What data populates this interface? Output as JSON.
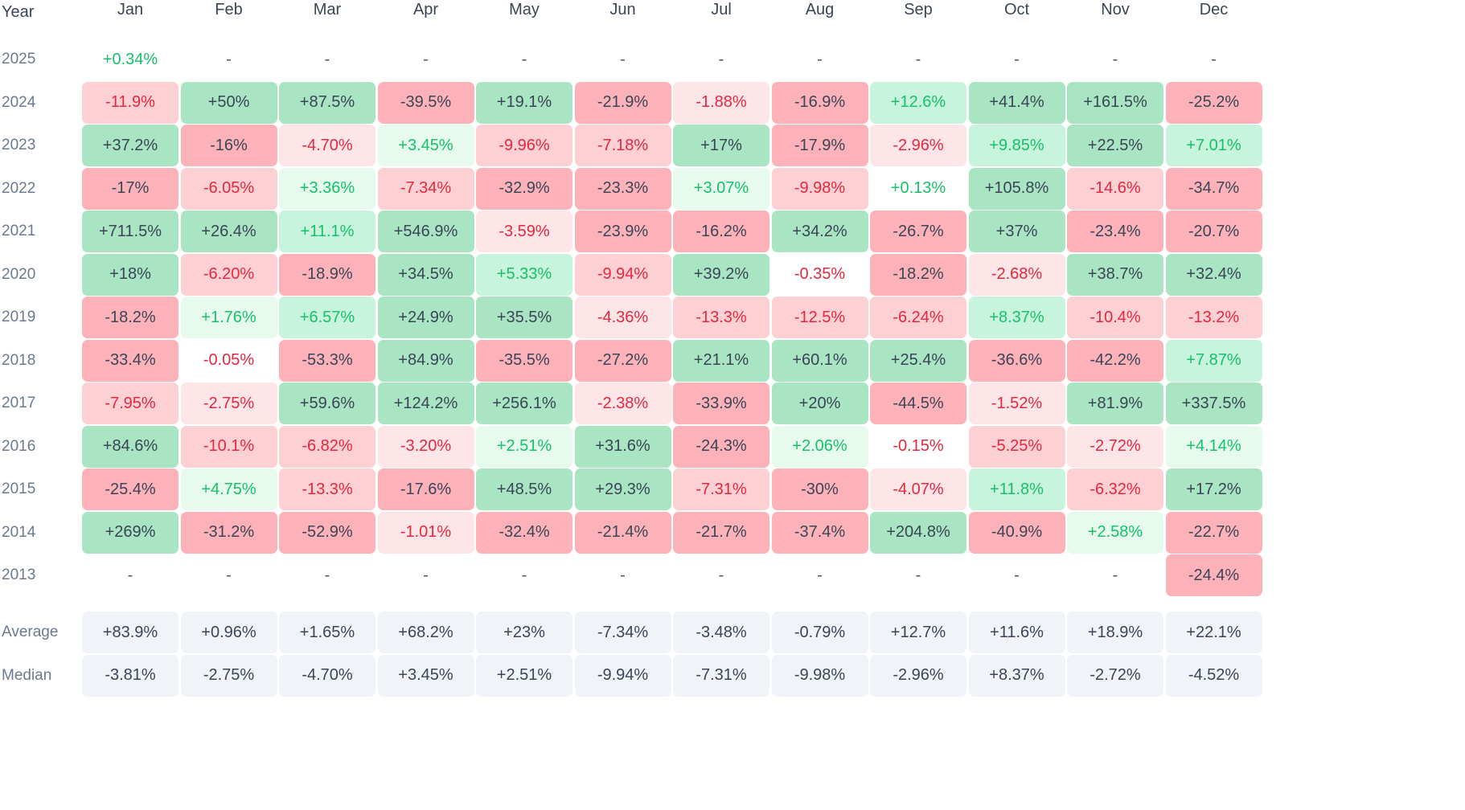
{
  "chart_data": {
    "type": "heatmap",
    "title": "",
    "corner_label": "Year",
    "months": [
      "Jan",
      "Feb",
      "Mar",
      "Apr",
      "May",
      "Jun",
      "Jul",
      "Aug",
      "Sep",
      "Oct",
      "Nov",
      "Dec"
    ],
    "rows": [
      {
        "year": "2025",
        "values": [
          "+0.34%",
          "-",
          "-",
          "-",
          "-",
          "-",
          "-",
          "-",
          "-",
          "-",
          "-",
          "-"
        ]
      },
      {
        "year": "2024",
        "values": [
          "-11.9%",
          "+50%",
          "+87.5%",
          "-39.5%",
          "+19.1%",
          "-21.9%",
          "-1.88%",
          "-16.9%",
          "+12.6%",
          "+41.4%",
          "+161.5%",
          "-25.2%"
        ]
      },
      {
        "year": "2023",
        "values": [
          "+37.2%",
          "-16%",
          "-4.70%",
          "+3.45%",
          "-9.96%",
          "-7.18%",
          "+17%",
          "-17.9%",
          "-2.96%",
          "+9.85%",
          "+22.5%",
          "+7.01%"
        ]
      },
      {
        "year": "2022",
        "values": [
          "-17%",
          "-6.05%",
          "+3.36%",
          "-7.34%",
          "-32.9%",
          "-23.3%",
          "+3.07%",
          "-9.98%",
          "+0.13%",
          "+105.8%",
          "-14.6%",
          "-34.7%"
        ]
      },
      {
        "year": "2021",
        "values": [
          "+711.5%",
          "+26.4%",
          "+11.1%",
          "+546.9%",
          "-3.59%",
          "-23.9%",
          "-16.2%",
          "+34.2%",
          "-26.7%",
          "+37%",
          "-23.4%",
          "-20.7%"
        ]
      },
      {
        "year": "2020",
        "values": [
          "+18%",
          "-6.20%",
          "-18.9%",
          "+34.5%",
          "+5.33%",
          "-9.94%",
          "+39.2%",
          "-0.35%",
          "-18.2%",
          "-2.68%",
          "+38.7%",
          "+32.4%"
        ]
      },
      {
        "year": "2019",
        "values": [
          "-18.2%",
          "+1.76%",
          "+6.57%",
          "+24.9%",
          "+35.5%",
          "-4.36%",
          "-13.3%",
          "-12.5%",
          "-6.24%",
          "+8.37%",
          "-10.4%",
          "-13.2%"
        ]
      },
      {
        "year": "2018",
        "values": [
          "-33.4%",
          "-0.05%",
          "-53.3%",
          "+84.9%",
          "-35.5%",
          "-27.2%",
          "+21.1%",
          "+60.1%",
          "+25.4%",
          "-36.6%",
          "-42.2%",
          "+7.87%"
        ]
      },
      {
        "year": "2017",
        "values": [
          "-7.95%",
          "-2.75%",
          "+59.6%",
          "+124.2%",
          "+256.1%",
          "-2.38%",
          "-33.9%",
          "+20%",
          "-44.5%",
          "-1.52%",
          "+81.9%",
          "+337.5%"
        ]
      },
      {
        "year": "2016",
        "values": [
          "+84.6%",
          "-10.1%",
          "-6.82%",
          "-3.20%",
          "+2.51%",
          "+31.6%",
          "-24.3%",
          "+2.06%",
          "-0.15%",
          "-5.25%",
          "-2.72%",
          "+4.14%"
        ]
      },
      {
        "year": "2015",
        "values": [
          "-25.4%",
          "+4.75%",
          "-13.3%",
          "-17.6%",
          "+48.5%",
          "+29.3%",
          "-7.31%",
          "-30%",
          "-4.07%",
          "+11.8%",
          "-6.32%",
          "+17.2%"
        ]
      },
      {
        "year": "2014",
        "values": [
          "+269%",
          "-31.2%",
          "-52.9%",
          "-1.01%",
          "-32.4%",
          "-21.4%",
          "-21.7%",
          "-37.4%",
          "+204.8%",
          "-40.9%",
          "+2.58%",
          "-22.7%"
        ]
      },
      {
        "year": "2013",
        "values": [
          "-",
          "-",
          "-",
          "-",
          "-",
          "-",
          "-",
          "-",
          "-",
          "-",
          "-",
          "-24.4%"
        ]
      }
    ],
    "summary_rows": [
      {
        "label": "Average",
        "values": [
          "+83.9%",
          "+0.96%",
          "+1.65%",
          "+68.2%",
          "+23%",
          "-7.34%",
          "-3.48%",
          "-0.79%",
          "+12.7%",
          "+11.6%",
          "+18.9%",
          "+22.1%"
        ]
      },
      {
        "label": "Median",
        "values": [
          "-3.81%",
          "-2.75%",
          "-4.70%",
          "+3.45%",
          "+2.51%",
          "-9.94%",
          "-7.31%",
          "-9.98%",
          "-2.96%",
          "+8.37%",
          "-2.72%",
          "-4.52%"
        ]
      }
    ],
    "colors": {
      "pos_strong_bg": "#a9e4c3",
      "pos_mid_bg": "#c8f3dc",
      "pos_light_bg": "#e6fbee",
      "neg_strong_bg": "#fdb2b9",
      "neg_mid_bg": "#fdd0d4",
      "neg_light_bg": "#fee6e8",
      "pos_text_light": "#16c26a",
      "neg_text_light": "#e6283f",
      "dark_text": "#3a4556",
      "summary_bg": "#f0f3f8"
    }
  }
}
